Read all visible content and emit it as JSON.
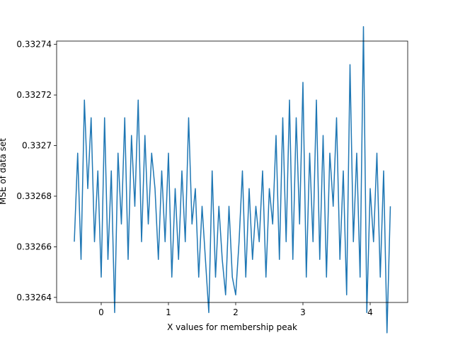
{
  "chart_data": {
    "type": "line",
    "xlabel": "X values for membership peak",
    "ylabel": "MSE of data set",
    "color": "#1f77b4",
    "x": [
      -0.4,
      -0.35,
      -0.3,
      -0.25,
      -0.2,
      -0.15,
      -0.1,
      -0.05,
      0,
      0.05,
      0.1,
      0.15,
      0.2,
      0.25,
      0.3,
      0.35,
      0.4,
      0.45,
      0.5,
      0.55,
      0.6,
      0.65,
      0.7,
      0.75,
      0.8,
      0.85,
      0.9,
      0.95,
      1,
      1.05,
      1.1,
      1.15,
      1.2,
      1.25,
      1.3,
      1.35,
      1.4,
      1.45,
      1.5,
      1.55,
      1.6,
      1.65,
      1.7,
      1.75,
      1.8,
      1.85,
      1.9,
      1.95,
      2,
      2.05,
      2.1,
      2.15,
      2.2,
      2.25,
      2.3,
      2.35,
      2.4,
      2.45,
      2.5,
      2.55,
      2.6,
      2.65,
      2.7,
      2.75,
      2.8,
      2.85,
      2.9,
      2.95,
      3,
      3.05,
      3.1,
      3.15,
      3.2,
      3.25,
      3.3,
      3.35,
      3.4,
      3.45,
      3.5,
      3.55,
      3.6,
      3.65,
      3.7,
      3.75,
      3.8,
      3.85,
      3.9,
      3.95,
      4,
      4.05,
      4.1,
      4.15,
      4.2,
      4.25,
      4.3
    ],
    "values": [
      0.332662,
      0.332697,
      0.332655,
      0.332718,
      0.332683,
      0.332711,
      0.332662,
      0.33269,
      0.332648,
      0.332711,
      0.332655,
      0.33269,
      0.332634,
      0.332697,
      0.332669,
      0.332711,
      0.332655,
      0.332704,
      0.332676,
      0.332718,
      0.332662,
      0.332704,
      0.332669,
      0.332697,
      0.332683,
      0.332655,
      0.33269,
      0.332662,
      0.332697,
      0.332648,
      0.332683,
      0.332655,
      0.33269,
      0.332662,
      0.332711,
      0.332669,
      0.332683,
      0.332648,
      0.332676,
      0.332655,
      0.332634,
      0.33269,
      0.332648,
      0.332676,
      0.332655,
      0.332641,
      0.332676,
      0.332648,
      0.332641,
      0.332662,
      0.33269,
      0.332648,
      0.332683,
      0.332655,
      0.332676,
      0.332662,
      0.33269,
      0.332648,
      0.332683,
      0.332669,
      0.332704,
      0.332655,
      0.332711,
      0.332662,
      0.332718,
      0.332655,
      0.332711,
      0.332669,
      0.332725,
      0.332648,
      0.332697,
      0.332662,
      0.332718,
      0.332655,
      0.332704,
      0.332648,
      0.332697,
      0.332676,
      0.332711,
      0.332655,
      0.33269,
      0.332641,
      0.332732,
      0.332662,
      0.332697,
      0.332648,
      0.332747,
      0.332634,
      0.332683,
      0.332662,
      0.332697,
      0.332648,
      0.33269,
      0.332626,
      0.332676
    ],
    "xlim": [
      -0.663,
      4.558
    ],
    "xticks": [
      0,
      1,
      2,
      3,
      4
    ],
    "ylim": [
      0.332638,
      0.3327413
    ],
    "yticks": [
      0.33264,
      0.33266,
      0.33268,
      0.3327,
      0.33272,
      0.33274
    ]
  }
}
